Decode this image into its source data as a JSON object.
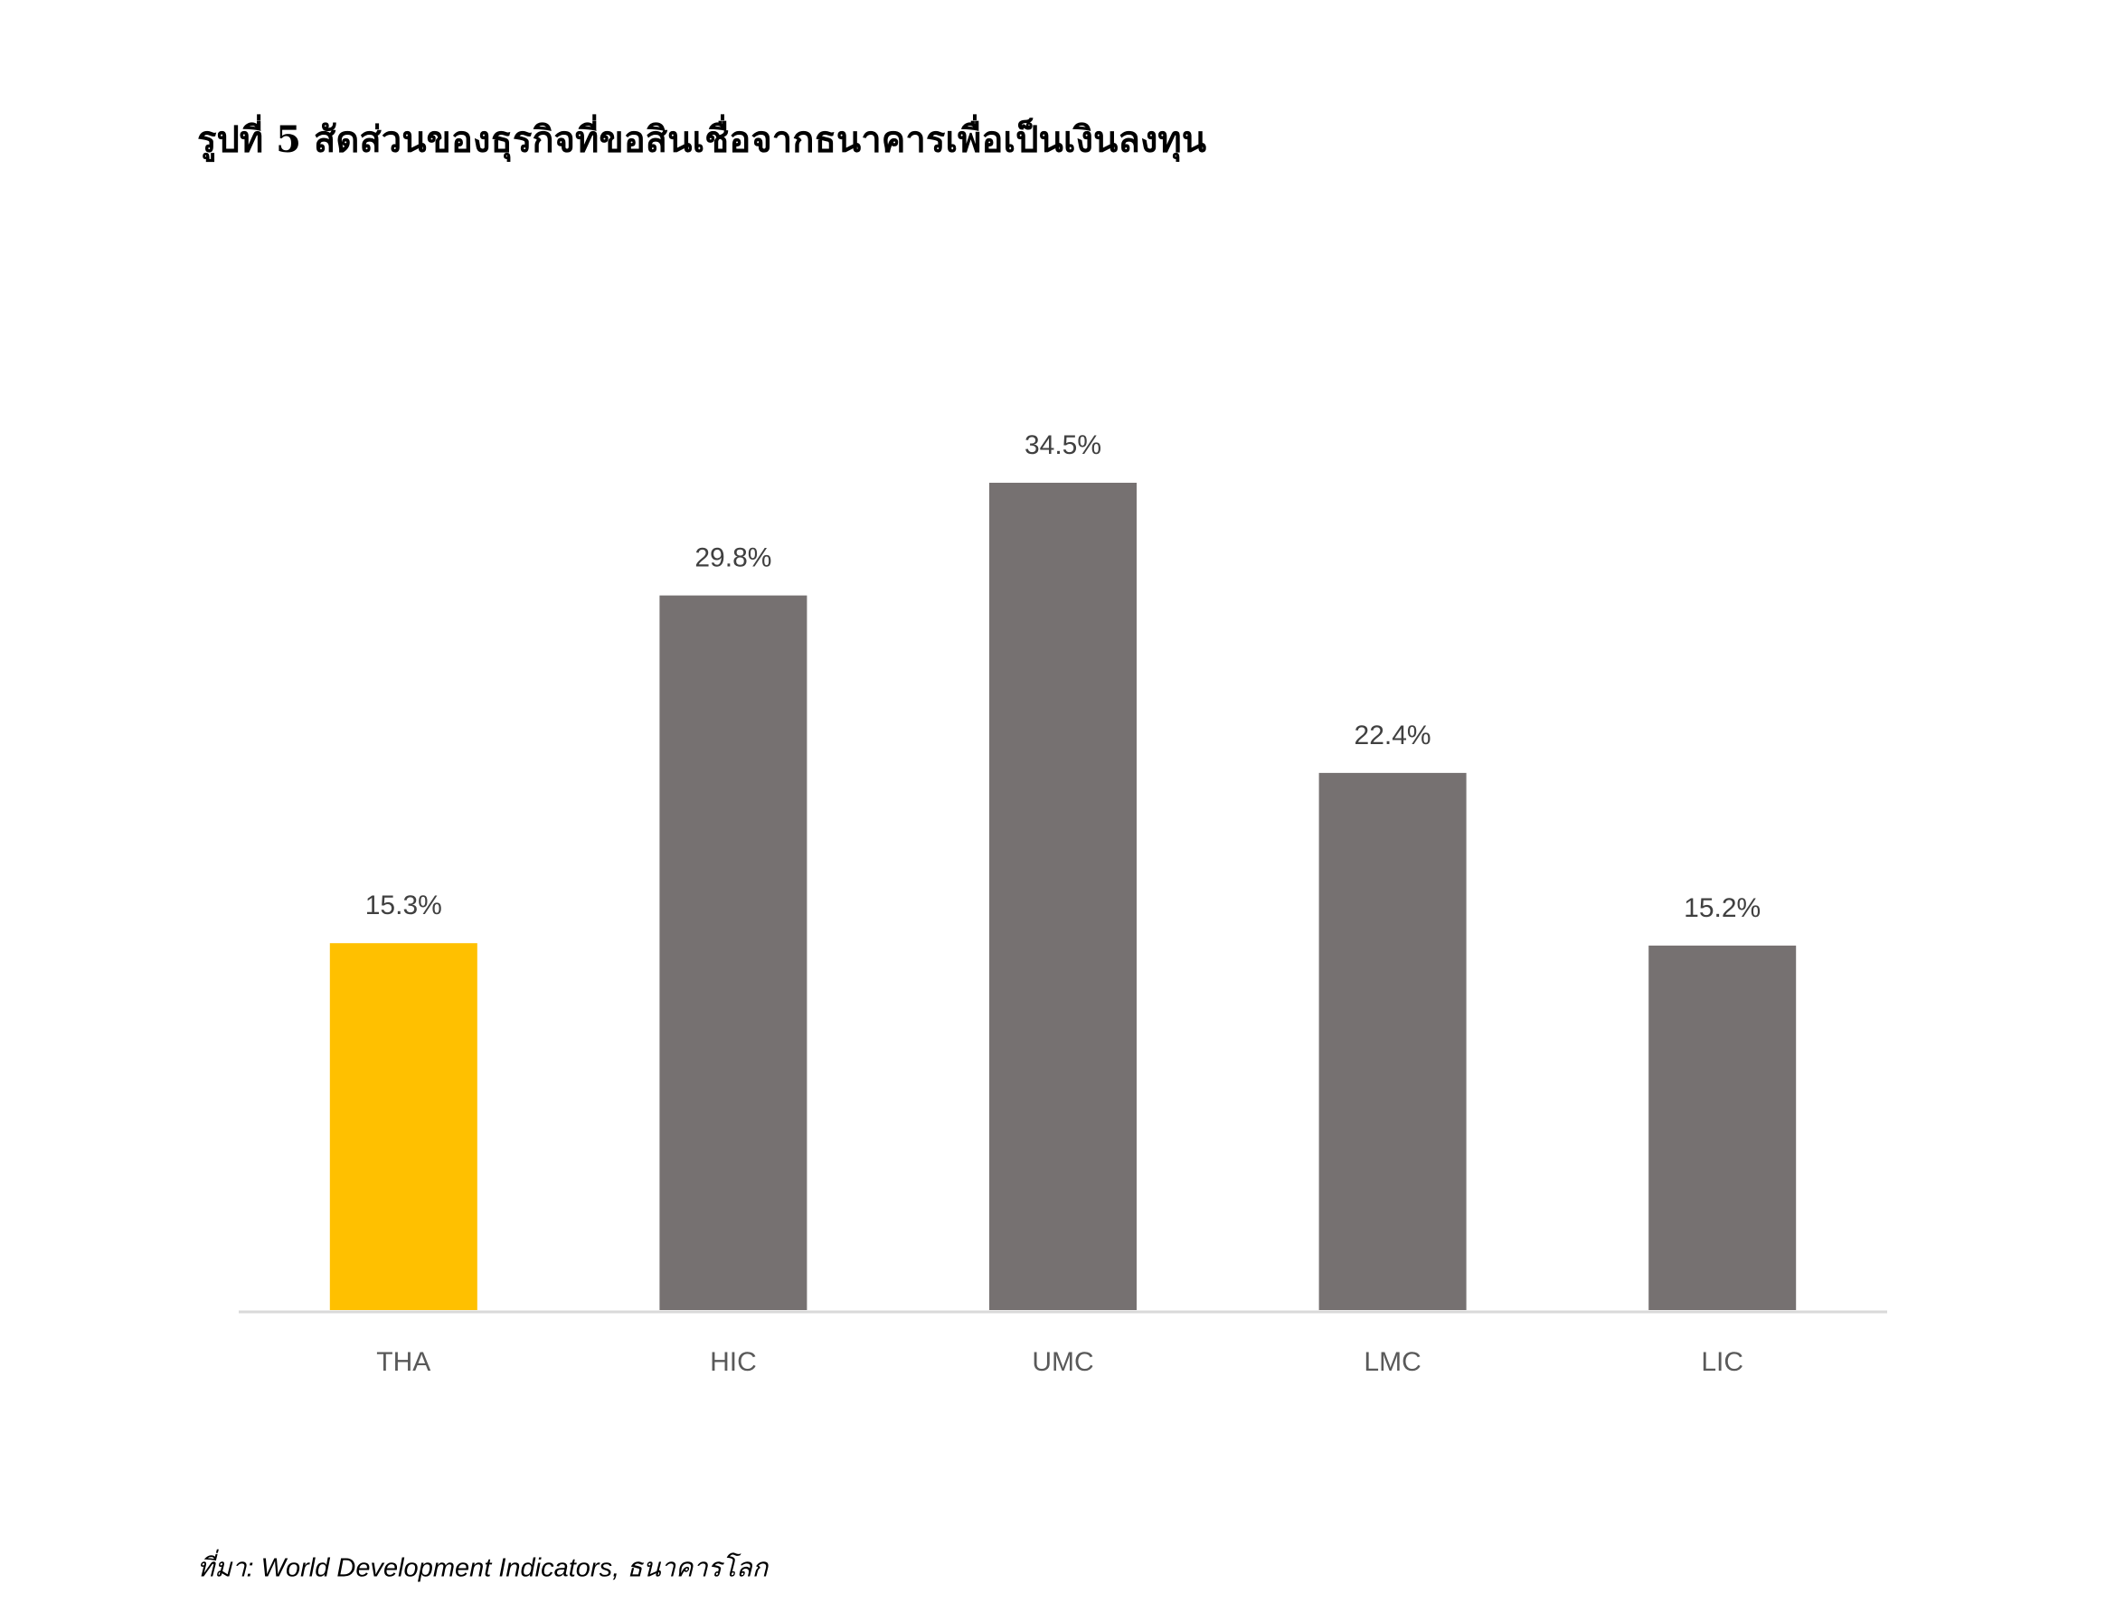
{
  "chart_data": {
    "type": "bar",
    "title": "รูปที่ 5 สัดส่วนของธุรกิจที่ขอสินเชื่อจากธนาคารเพื่อเป็นเงินลงทุน",
    "categories": [
      "THA",
      "HIC",
      "UMC",
      "LMC",
      "LIC"
    ],
    "values": [
      15.3,
      29.8,
      34.5,
      22.4,
      15.2
    ],
    "value_labels": [
      "15.3%",
      "29.8%",
      "34.5%",
      "22.4%",
      "15.2%"
    ],
    "colors": [
      "#ffc000",
      "#767171",
      "#767171",
      "#767171",
      "#767171"
    ],
    "source": "ที่มา: World Development Indicators, ธนาคารโลก"
  }
}
